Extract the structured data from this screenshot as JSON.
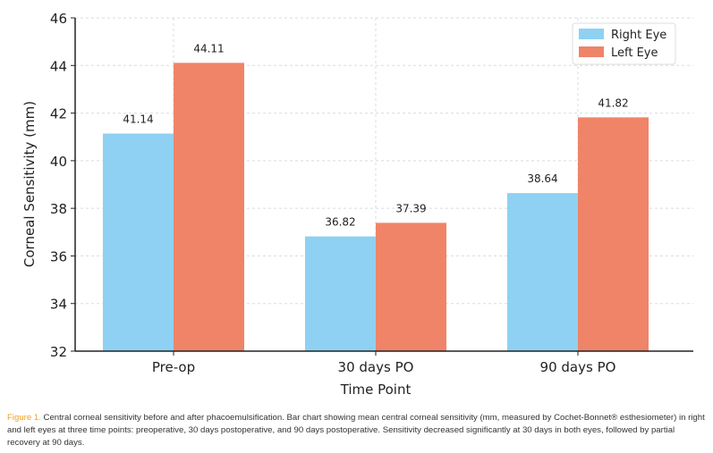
{
  "chart_data": {
    "type": "bar",
    "categories": [
      "Pre-op",
      "30 days PO",
      "90 days PO"
    ],
    "series": [
      {
        "name": "Right Eye",
        "values": [
          41.14,
          36.82,
          38.64
        ],
        "color": "#8ed1f2"
      },
      {
        "name": "Left Eye",
        "values": [
          44.11,
          37.39,
          41.82
        ],
        "color": "#ef8468"
      }
    ],
    "data_labels": [
      [
        "41.14",
        "36.82",
        "38.64"
      ],
      [
        "44.11",
        "37.39",
        "41.82"
      ]
    ],
    "xlabel": "Time Point",
    "ylabel": "Corneal Sensitivity (mm)",
    "ylim": [
      32,
      46
    ],
    "yticks": [
      "32",
      "34",
      "36",
      "38",
      "40",
      "42",
      "44",
      "46"
    ],
    "grid": true,
    "legend_placement": "top-right"
  },
  "caption": {
    "figure_label": "Figure 1.",
    "text": " Central corneal sensitivity before and after phacoemulsification. Bar chart showing mean central corneal sensitivity (mm, measured by Cochet-Bonnet® esthesiometer) in right and left eyes at three time points: preoperative, 30 days postoperative, and 90 days postoperative. Sensitivity decreased significantly at 30 days in both eyes, followed by partial recovery at 90 days."
  }
}
